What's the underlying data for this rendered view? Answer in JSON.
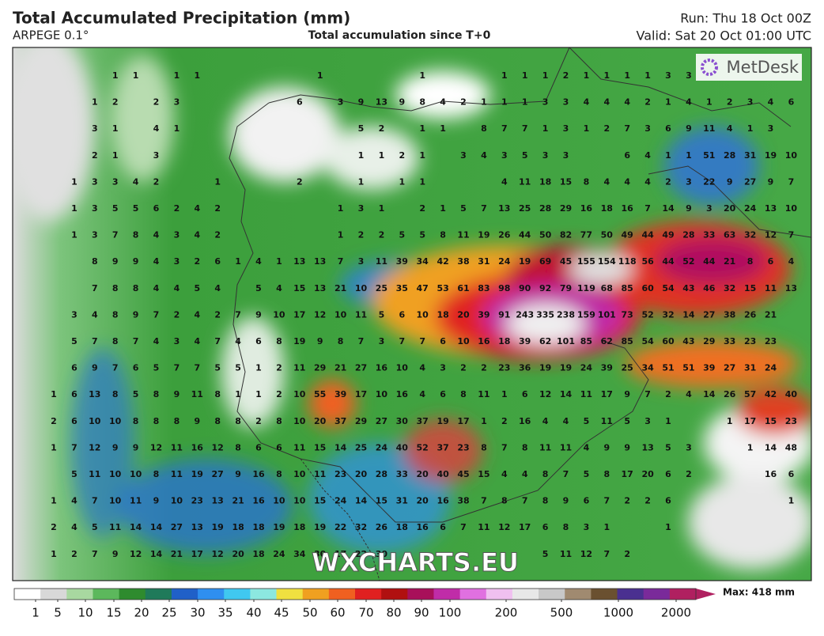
{
  "header": {
    "title": "Total Accumulated Precipitation (mm)",
    "model": "ARPEGE 0.1°",
    "subtitle": "Total accumulation since T+0",
    "run": "Run: Thu 18 Oct 00Z",
    "valid": "Valid: Sat 20 Oct 01:00 UTC"
  },
  "logo": "MetDesk",
  "watermark": "WXCHARTS.EU",
  "grid_values": [
    [
      null,
      null,
      null,
      1,
      1,
      null,
      1,
      1,
      null,
      null,
      null,
      null,
      null,
      1,
      null,
      null,
      null,
      null,
      1,
      null,
      null,
      null,
      1,
      1,
      1,
      2,
      1,
      1,
      1,
      1,
      3,
      3,
      null,
      null,
      null,
      null,
      null
    ],
    [
      null,
      null,
      1,
      2,
      null,
      2,
      3,
      null,
      null,
      null,
      null,
      null,
      6,
      null,
      3,
      9,
      13,
      9,
      8,
      4,
      2,
      1,
      1,
      1,
      3,
      3,
      4,
      4,
      4,
      2,
      1,
      4,
      1,
      2,
      3,
      4,
      6
    ],
    [
      null,
      null,
      3,
      1,
      null,
      4,
      1,
      null,
      null,
      null,
      null,
      null,
      null,
      null,
      null,
      5,
      2,
      null,
      1,
      1,
      null,
      8,
      7,
      7,
      1,
      3,
      1,
      2,
      7,
      3,
      6,
      9,
      11,
      4,
      1,
      3,
      null
    ],
    [
      null,
      null,
      2,
      1,
      null,
      3,
      null,
      null,
      null,
      null,
      null,
      null,
      null,
      null,
      null,
      1,
      1,
      2,
      1,
      null,
      3,
      4,
      3,
      5,
      3,
      3,
      null,
      null,
      6,
      4,
      1,
      1,
      51,
      28,
      31,
      19,
      10
    ],
    [
      null,
      1,
      3,
      3,
      4,
      2,
      null,
      null,
      1,
      null,
      null,
      null,
      2,
      null,
      null,
      1,
      null,
      1,
      1,
      null,
      null,
      null,
      4,
      11,
      18,
      15,
      8,
      4,
      4,
      4,
      2,
      3,
      22,
      9,
      27,
      9,
      7
    ],
    [
      null,
      1,
      3,
      5,
      5,
      6,
      2,
      4,
      2,
      null,
      null,
      null,
      null,
      null,
      1,
      3,
      1,
      null,
      2,
      1,
      5,
      7,
      13,
      25,
      28,
      29,
      16,
      18,
      16,
      7,
      14,
      9,
      3,
      20,
      24,
      13,
      10
    ],
    [
      null,
      1,
      3,
      7,
      8,
      4,
      3,
      4,
      2,
      null,
      null,
      null,
      null,
      null,
      1,
      2,
      2,
      5,
      5,
      8,
      11,
      19,
      26,
      44,
      50,
      82,
      77,
      50,
      49,
      44,
      49,
      28,
      33,
      63,
      32,
      12,
      7
    ],
    [
      null,
      null,
      8,
      9,
      9,
      4,
      3,
      2,
      6,
      1,
      4,
      1,
      13,
      13,
      7,
      3,
      11,
      39,
      34,
      42,
      38,
      31,
      24,
      19,
      69,
      45,
      155,
      154,
      118,
      56,
      44,
      52,
      44,
      21,
      8,
      6,
      4
    ],
    [
      null,
      null,
      7,
      8,
      8,
      4,
      4,
      5,
      4,
      null,
      5,
      4,
      15,
      13,
      21,
      10,
      25,
      35,
      47,
      53,
      61,
      83,
      98,
      90,
      92,
      79,
      119,
      68,
      85,
      60,
      54,
      43,
      46,
      32,
      15,
      11,
      13
    ],
    [
      null,
      3,
      4,
      8,
      9,
      7,
      2,
      4,
      2,
      7,
      9,
      10,
      17,
      12,
      10,
      11,
      5,
      6,
      10,
      18,
      20,
      39,
      91,
      243,
      335,
      238,
      159,
      101,
      73,
      52,
      32,
      14,
      27,
      38,
      26,
      21,
      null
    ],
    [
      null,
      5,
      7,
      8,
      7,
      4,
      3,
      4,
      7,
      4,
      6,
      8,
      19,
      9,
      8,
      7,
      3,
      7,
      7,
      6,
      10,
      16,
      18,
      39,
      62,
      101,
      85,
      62,
      85,
      54,
      60,
      43,
      29,
      33,
      23,
      23,
      null
    ],
    [
      null,
      6,
      9,
      7,
      6,
      5,
      7,
      7,
      5,
      5,
      1,
      2,
      11,
      29,
      21,
      27,
      16,
      10,
      4,
      3,
      2,
      2,
      23,
      36,
      19,
      19,
      24,
      39,
      25,
      34,
      51,
      51,
      39,
      27,
      31,
      24,
      null
    ],
    [
      1,
      6,
      13,
      8,
      5,
      8,
      9,
      11,
      8,
      1,
      1,
      2,
      10,
      55,
      39,
      17,
      10,
      16,
      4,
      6,
      8,
      11,
      1,
      6,
      12,
      14,
      11,
      17,
      9,
      7,
      2,
      4,
      14,
      26,
      57,
      42,
      40
    ],
    [
      2,
      6,
      10,
      10,
      8,
      8,
      8,
      9,
      8,
      8,
      2,
      8,
      10,
      20,
      37,
      29,
      27,
      30,
      37,
      19,
      17,
      1,
      2,
      16,
      4,
      4,
      5,
      11,
      5,
      3,
      1,
      null,
      null,
      1,
      17,
      15,
      23
    ],
    [
      1,
      7,
      12,
      9,
      9,
      12,
      11,
      16,
      12,
      8,
      6,
      6,
      11,
      15,
      14,
      25,
      24,
      40,
      52,
      37,
      23,
      8,
      7,
      8,
      11,
      11,
      4,
      9,
      9,
      13,
      5,
      3,
      null,
      null,
      1,
      14,
      48
    ],
    [
      null,
      5,
      11,
      10,
      10,
      8,
      11,
      19,
      27,
      9,
      16,
      8,
      10,
      11,
      23,
      20,
      28,
      33,
      20,
      40,
      45,
      15,
      4,
      4,
      8,
      7,
      5,
      8,
      17,
      20,
      6,
      2,
      null,
      null,
      null,
      16,
      6
    ],
    [
      1,
      4,
      7,
      10,
      11,
      9,
      10,
      23,
      13,
      21,
      16,
      10,
      10,
      15,
      24,
      14,
      15,
      31,
      20,
      16,
      38,
      7,
      8,
      7,
      8,
      9,
      6,
      7,
      2,
      2,
      6,
      null,
      null,
      null,
      null,
      null,
      1
    ],
    [
      2,
      4,
      5,
      11,
      14,
      14,
      27,
      13,
      19,
      18,
      18,
      19,
      18,
      19,
      22,
      32,
      26,
      18,
      16,
      6,
      7,
      11,
      12,
      17,
      6,
      8,
      3,
      1,
      null,
      null,
      1,
      null,
      null,
      null,
      null,
      null,
      null
    ],
    [
      1,
      2,
      7,
      9,
      12,
      14,
      21,
      17,
      12,
      20,
      18,
      24,
      34,
      30,
      17,
      22,
      30,
      null,
      null,
      null,
      null,
      null,
      null,
      null,
      5,
      11,
      12,
      7,
      2,
      null,
      null,
      null,
      null,
      null,
      null,
      null,
      null
    ]
  ],
  "colorbar": {
    "ticks": [
      1,
      5,
      10,
      15,
      20,
      25,
      30,
      35,
      40,
      45,
      50,
      60,
      70,
      80,
      90,
      100,
      200,
      500,
      1000,
      2000
    ],
    "colors": [
      "#ffffff",
      "#d8d8d8",
      "#a8d8a0",
      "#5cb85c",
      "#2e8b2e",
      "#1f7a5a",
      "#2060c8",
      "#2f8ff0",
      "#40c8f0",
      "#8ce8e0",
      "#f0e040",
      "#f0a020",
      "#f06020",
      "#e02020",
      "#b01010",
      "#a8105a",
      "#c02ca8",
      "#e070e0",
      "#f0c0f0",
      "#e8e8e8",
      "#c8c8c8",
      "#a08a70",
      "#6a5030",
      "#4a3090",
      "#7a2a9a",
      "#b02060"
    ],
    "max_label": "Max: 418 mm"
  }
}
